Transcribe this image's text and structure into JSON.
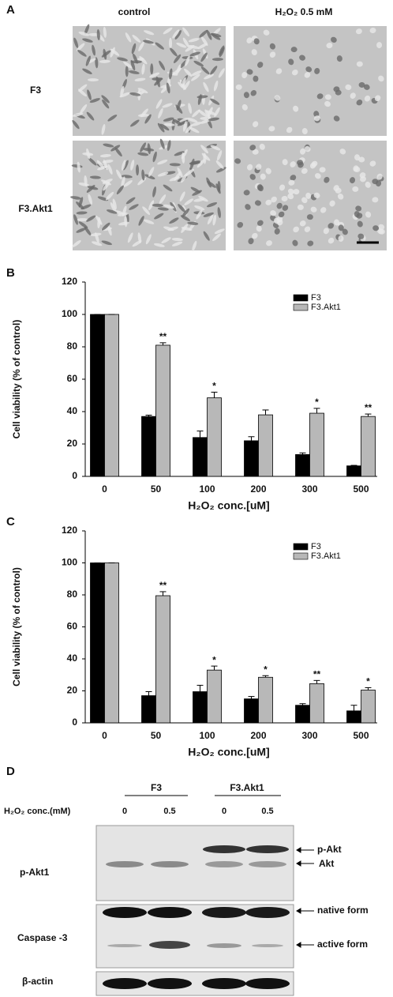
{
  "panel_a": {
    "label": "A",
    "columns": [
      "control",
      "H₂O₂ 0.5 mM"
    ],
    "rows": [
      "F3",
      "F3.Akt1"
    ]
  },
  "chart_data": [
    {
      "type": "bar",
      "label": "B",
      "categories": [
        "0",
        "50",
        "100",
        "200",
        "300",
        "500"
      ],
      "series": [
        {
          "name": "F3",
          "color": "#000000",
          "values": [
            100,
            37,
            24,
            22,
            13.5,
            6.5
          ],
          "errors": [
            0,
            0.8,
            4,
            2.5,
            1,
            0.3
          ]
        },
        {
          "name": "F3.Akt1",
          "color": "#b8b8b8",
          "values": [
            100,
            81,
            48.5,
            38,
            39,
            37
          ],
          "errors": [
            0,
            1.5,
            3.5,
            3,
            3,
            1.5
          ],
          "annotations": [
            null,
            "**",
            "*",
            null,
            "*",
            "**"
          ]
        }
      ],
      "ylim": [
        0,
        120
      ],
      "yticks": [
        0,
        20,
        40,
        60,
        80,
        100,
        120
      ],
      "ylabel": "Cell viability (% of control)",
      "xlabel": "H₂O₂ conc.[uM]",
      "legend": "upper right"
    },
    {
      "type": "bar",
      "label": "C",
      "categories": [
        "0",
        "50",
        "100",
        "200",
        "300",
        "500"
      ],
      "series": [
        {
          "name": "F3",
          "color": "#000000",
          "values": [
            100,
            17,
            19.5,
            15,
            11,
            7.5
          ],
          "errors": [
            0,
            2.5,
            4,
            1.5,
            1,
            3.5
          ]
        },
        {
          "name": "F3.Akt1",
          "color": "#b8b8b8",
          "values": [
            100,
            79.5,
            33,
            28.5,
            24.5,
            20.5
          ],
          "errors": [
            0,
            2.5,
            2.5,
            1,
            2,
            1.5
          ],
          "annotations": [
            null,
            "**",
            "*",
            "*",
            "**",
            "*"
          ]
        }
      ],
      "ylim": [
        0,
        120
      ],
      "yticks": [
        0,
        20,
        40,
        60,
        80,
        100,
        120
      ],
      "ylabel": "Cell viability (% of control)",
      "xlabel": "H₂O₂ conc.[uM]",
      "legend": "upper right"
    }
  ],
  "panel_d": {
    "label": "D",
    "groups": [
      "F3",
      "F3.Akt1"
    ],
    "condition": "H₂O₂ conc.(mM)",
    "lanes": [
      "0",
      "0.5",
      "0",
      "0.5"
    ],
    "blots": [
      "p-Akt1",
      "Caspase -3",
      "β-actin"
    ],
    "bands": [
      "p-Akt",
      "Akt",
      "native form",
      "active form"
    ]
  }
}
